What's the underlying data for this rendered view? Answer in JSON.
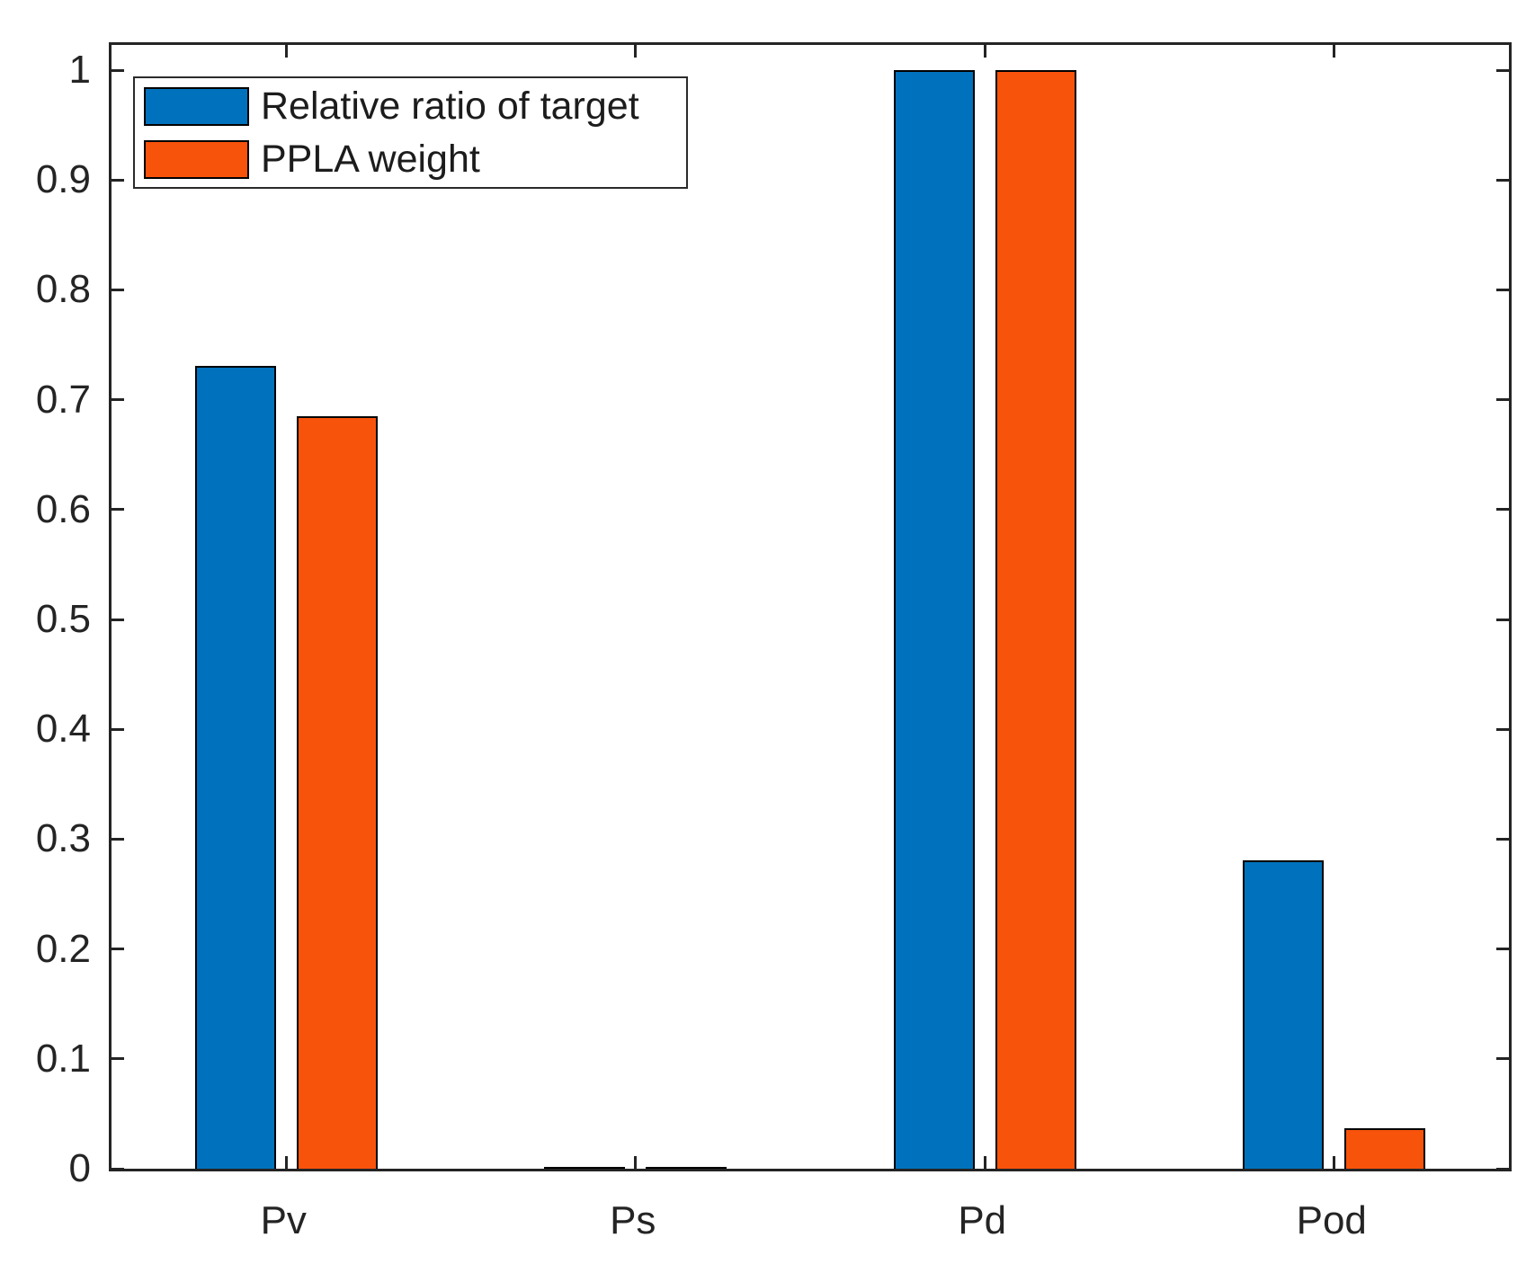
{
  "chart_data": {
    "type": "bar",
    "title": "",
    "categories": [
      "Pv",
      "Ps",
      "Pd",
      "Pod"
    ],
    "series": [
      {
        "name": "Relative ratio of target",
        "color": "#0072BD",
        "values": [
          0.731,
          0.002,
          1.0,
          0.281
        ]
      },
      {
        "name": "PPLA weight",
        "color": "#F8530B",
        "values": [
          0.685,
          0.002,
          1.0,
          0.037
        ]
      }
    ],
    "xlabel": "",
    "ylabel": "",
    "ylim": [
      0,
      1.023
    ],
    "yticks": [
      0,
      0.1,
      0.2,
      0.3,
      0.4,
      0.5,
      0.6,
      0.7,
      0.8,
      0.9,
      1
    ],
    "ytick_labels": [
      "0",
      "0.1",
      "0.2",
      "0.3",
      "0.4",
      "0.5",
      "0.6",
      "0.7",
      "0.8",
      "0.9",
      "1"
    ],
    "grid": false,
    "legend_position": "top-left",
    "axis_color": "#242424",
    "bar_edge_color": "#000000",
    "background_color": "#ffffff"
  }
}
